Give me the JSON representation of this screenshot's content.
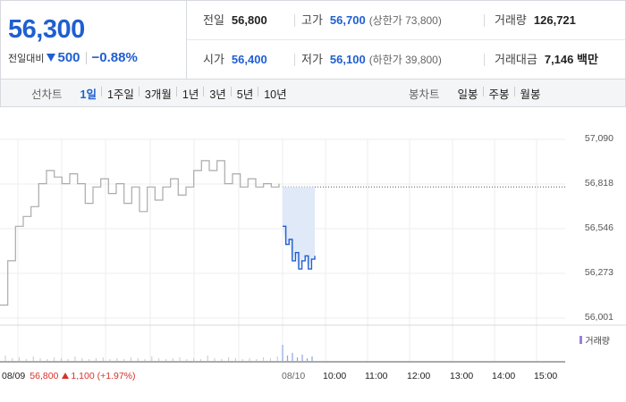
{
  "quote": {
    "current_price": "56,300",
    "change_label": "전일대비",
    "change_amount": "500",
    "change_rate": "−0.88%"
  },
  "stats": {
    "prev_close": {
      "label": "전일",
      "value": "56,800"
    },
    "high": {
      "label": "고가",
      "value": "56,700",
      "sub": "(상한가 73,800)"
    },
    "volume": {
      "label": "거래량",
      "value": "126,721"
    },
    "open": {
      "label": "시가",
      "value": "56,400"
    },
    "low": {
      "label": "저가",
      "value": "56,100",
      "sub": "(하한가 39,800)"
    },
    "trade_value": {
      "label": "거래대금",
      "value": "7,146 백만"
    }
  },
  "tabs": {
    "line_label": "선차트",
    "line_items": [
      "1일",
      "1주일",
      "3개월",
      "1년",
      "3년",
      "5년",
      "10년"
    ],
    "line_active": 0,
    "candle_label": "봉차트",
    "candle_items": [
      "일봉",
      "주봉",
      "월봉"
    ]
  },
  "colors": {
    "up": "#d6312b",
    "down": "#1f5fd1",
    "prev_line": "#aaaaaa",
    "volume": "#9a7fd4"
  },
  "chart_data": {
    "type": "line",
    "y_ticks": [
      "57,090",
      "56,818",
      "56,546",
      "56,273",
      "56,001"
    ],
    "ylim": [
      56001,
      57090
    ],
    "reference_line": 56800,
    "x_ticks": [
      "08/10",
      "10:00",
      "11:00",
      "12:00",
      "13:00",
      "14:00",
      "15:00"
    ],
    "prev_day_label": "08/09",
    "prev_day_close": "56,800",
    "prev_day_change": "1,100",
    "prev_day_rate": "(+1.97%)",
    "volume_label": "거래량",
    "series": [
      {
        "name": "08/09",
        "values": [
          56080,
          56350,
          56560,
          56620,
          56680,
          56820,
          56900,
          56860,
          56820,
          56880,
          56820,
          56700,
          56800,
          56850,
          56760,
          56820,
          56700,
          56800,
          56650,
          56800,
          56720,
          56800,
          56850,
          56750,
          56800,
          56900,
          56960,
          56900,
          56960,
          56820,
          56880,
          56800,
          56850,
          56800,
          56820,
          56800,
          56820
        ]
      },
      {
        "name": "08/10",
        "values": [
          56560,
          56450,
          56480,
          56350,
          56400,
          56300,
          56350,
          56380,
          56300,
          56360,
          56380
        ]
      }
    ]
  }
}
